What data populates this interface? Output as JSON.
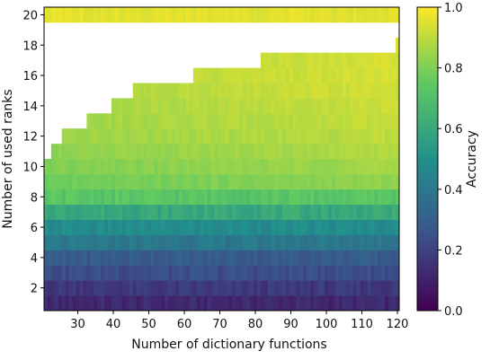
{
  "chart_data": {
    "type": "heatmap",
    "title": "",
    "xlabel": "Number of dictionary functions",
    "ylabel": "Number of used ranks",
    "xlim": [
      20.5,
      120.5
    ],
    "ylim": [
      0.5,
      20.5
    ],
    "x_ticks": [
      30,
      40,
      50,
      60,
      70,
      80,
      90,
      100,
      110,
      120
    ],
    "y_ticks": [
      2,
      4,
      6,
      8,
      10,
      12,
      14,
      16,
      18,
      20
    ],
    "colorbar": {
      "label": "Accuracy",
      "range": [
        0.0,
        1.0
      ],
      "ticks": [
        "0.0",
        "0.2",
        "0.4",
        "0.6",
        "0.8",
        "1.0"
      ],
      "colormap": "viridis",
      "colors": [
        "#440154",
        "#3b528b",
        "#21918c",
        "#5ec962",
        "#fde725"
      ]
    },
    "x": {
      "start": 21,
      "end": 120,
      "step": 1
    },
    "rank_rows": [
      {
        "rank": 1,
        "accuracy": 0.12
      },
      {
        "rank": 2,
        "accuracy": 0.17
      },
      {
        "rank": 3,
        "accuracy": 0.24
      },
      {
        "rank": 4,
        "accuracy": 0.29
      },
      {
        "rank": 5,
        "accuracy": 0.4
      },
      {
        "rank": 6,
        "accuracy": 0.48
      },
      {
        "rank": 7,
        "accuracy": 0.6
      },
      {
        "rank": 8,
        "accuracy": 0.73
      },
      {
        "rank": 9,
        "accuracy": 0.8
      },
      {
        "rank": 10,
        "accuracy": 0.83
      },
      {
        "rank": 11,
        "accuracy": 0.85
      },
      {
        "rank": 12,
        "accuracy": 0.87
      },
      {
        "rank": 13,
        "accuracy": 0.88
      },
      {
        "rank": 14,
        "accuracy": 0.89
      },
      {
        "rank": 15,
        "accuracy": 0.9
      },
      {
        "rank": 16,
        "accuracy": 0.91
      },
      {
        "rank": 17,
        "accuracy": 0.91
      },
      {
        "rank": 18,
        "accuracy": 0.92
      },
      {
        "rank": 19,
        "accuracy": 0.92
      },
      {
        "rank": 20,
        "accuracy": 0.96
      }
    ],
    "max_rank_by_x": [
      {
        "x_from": 21,
        "x_to": 21,
        "max_rank": 10
      },
      {
        "x_from": 22,
        "x_to": 22,
        "max_rank": 10
      },
      {
        "x_from": 23,
        "x_to": 25,
        "max_rank": 11
      },
      {
        "x_from": 26,
        "x_to": 32,
        "max_rank": 12
      },
      {
        "x_from": 33,
        "x_to": 39,
        "max_rank": 13
      },
      {
        "x_from": 40,
        "x_to": 45,
        "max_rank": 14
      },
      {
        "x_from": 46,
        "x_to": 62,
        "max_rank": 15
      },
      {
        "x_from": 63,
        "x_to": 81,
        "max_rank": 16
      },
      {
        "x_from": 82,
        "x_to": 119,
        "max_rank": 17
      },
      {
        "x_from": 120,
        "x_to": 120,
        "max_rank": 18
      }
    ],
    "top_row_rank": 20,
    "top_row_accuracy": 0.96
  }
}
